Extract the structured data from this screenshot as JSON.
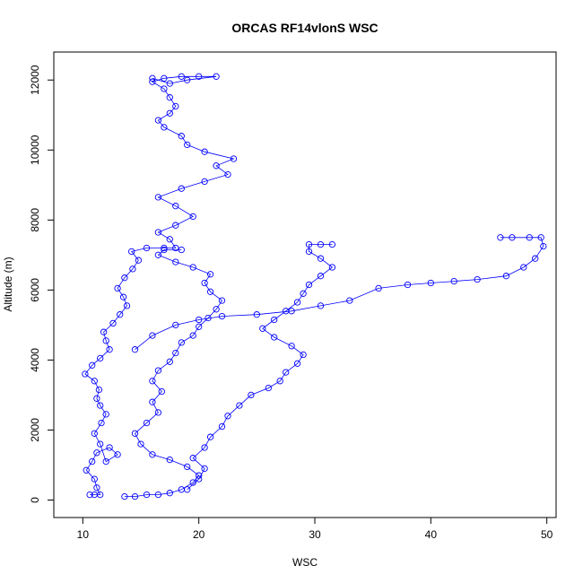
{
  "chart_data": {
    "type": "scatter",
    "title": "ORCAS RF14vlonS WSC",
    "xlabel": "WSC",
    "ylabel": "Altitude (m)",
    "xlim": [
      7.5,
      50.8
    ],
    "ylim": [
      -500,
      12800
    ],
    "xticks": [
      10,
      20,
      30,
      40,
      50
    ],
    "yticks": [
      0,
      2000,
      4000,
      6000,
      8000,
      10000,
      12000
    ],
    "grid": false,
    "legend": "none",
    "marker": "open-circle",
    "connected": true,
    "color": "#0000ff",
    "series": [
      {
        "points": [
          [
            10.6,
            150
          ],
          [
            11.0,
            150
          ],
          [
            11.5,
            150
          ],
          [
            11.2,
            350
          ],
          [
            11.0,
            600
          ],
          [
            10.3,
            850
          ],
          [
            10.8,
            1100
          ],
          [
            11.2,
            1350
          ],
          [
            12.3,
            1500
          ],
          [
            13.0,
            1300
          ],
          [
            12.0,
            1100
          ],
          [
            11.5,
            1600
          ],
          [
            11.0,
            1900
          ],
          [
            11.6,
            2200
          ],
          [
            12.0,
            2450
          ],
          [
            11.5,
            2700
          ],
          [
            11.2,
            2900
          ],
          [
            11.4,
            3150
          ],
          [
            11.0,
            3400
          ],
          [
            10.2,
            3600
          ],
          [
            10.8,
            3850
          ],
          [
            11.5,
            4050
          ],
          [
            12.3,
            4300
          ],
          [
            12.0,
            4550
          ],
          [
            11.8,
            4800
          ],
          [
            12.6,
            5050
          ],
          [
            13.2,
            5300
          ],
          [
            13.8,
            5550
          ],
          [
            13.5,
            5800
          ],
          [
            13.0,
            6050
          ],
          [
            13.6,
            6350
          ],
          [
            14.3,
            6600
          ],
          [
            14.8,
            6850
          ],
          [
            14.2,
            7100
          ],
          [
            15.5,
            7200
          ],
          [
            17.0,
            7200
          ],
          [
            18.0,
            7200
          ],
          [
            17.5,
            7450
          ],
          [
            16.5,
            7650
          ],
          [
            18.0,
            7850
          ],
          [
            19.5,
            8100
          ],
          [
            18.0,
            8400
          ],
          [
            16.5,
            8650
          ],
          [
            18.5,
            8900
          ],
          [
            20.5,
            9100
          ],
          [
            22.5,
            9300
          ],
          [
            21.5,
            9550
          ],
          [
            23.0,
            9750
          ],
          [
            20.5,
            9950
          ],
          [
            19.0,
            10150
          ],
          [
            18.5,
            10400
          ],
          [
            17.0,
            10650
          ],
          [
            16.5,
            10850
          ],
          [
            17.5,
            11050
          ],
          [
            18.0,
            11250
          ],
          [
            17.5,
            11500
          ],
          [
            17.0,
            11750
          ],
          [
            16.0,
            11950
          ],
          [
            17.0,
            12050
          ],
          [
            18.5,
            12100
          ],
          [
            20.0,
            12100
          ],
          [
            21.5,
            12100
          ],
          [
            19.0,
            12000
          ],
          [
            17.5,
            11900
          ],
          [
            16.0,
            12050
          ]
        ]
      },
      {
        "points": [
          [
            13.6,
            100
          ],
          [
            14.5,
            100
          ],
          [
            15.5,
            150
          ],
          [
            16.5,
            150
          ],
          [
            17.5,
            200
          ],
          [
            18.5,
            300
          ],
          [
            19.5,
            500
          ],
          [
            20.0,
            700
          ],
          [
            19.0,
            950
          ],
          [
            17.5,
            1150
          ],
          [
            16.0,
            1300
          ],
          [
            15.0,
            1600
          ],
          [
            14.5,
            1900
          ],
          [
            15.5,
            2200
          ],
          [
            16.5,
            2500
          ],
          [
            16.0,
            2800
          ],
          [
            16.8,
            3100
          ],
          [
            16.0,
            3400
          ],
          [
            16.5,
            3700
          ],
          [
            17.5,
            3950
          ],
          [
            18.0,
            4200
          ],
          [
            18.5,
            4500
          ],
          [
            19.5,
            4700
          ],
          [
            20.0,
            4950
          ],
          [
            20.8,
            5200
          ],
          [
            21.5,
            5450
          ],
          [
            22.0,
            5700
          ],
          [
            21.0,
            5950
          ],
          [
            20.5,
            6200
          ],
          [
            21.0,
            6450
          ],
          [
            19.5,
            6650
          ],
          [
            18.0,
            6800
          ],
          [
            16.5,
            7000
          ],
          [
            17.0,
            7150
          ],
          [
            18.5,
            7150
          ]
        ]
      },
      {
        "points": [
          [
            19.0,
            300
          ],
          [
            20.0,
            600
          ],
          [
            20.5,
            900
          ],
          [
            19.5,
            1200
          ],
          [
            20.5,
            1500
          ],
          [
            21.0,
            1800
          ],
          [
            22.0,
            2100
          ],
          [
            22.5,
            2400
          ],
          [
            23.5,
            2700
          ],
          [
            24.5,
            3000
          ],
          [
            26.0,
            3200
          ],
          [
            27.0,
            3400
          ],
          [
            27.5,
            3650
          ],
          [
            28.5,
            3900
          ],
          [
            29.0,
            4150
          ],
          [
            28.0,
            4400
          ],
          [
            26.5,
            4650
          ],
          [
            25.5,
            4900
          ],
          [
            26.5,
            5150
          ],
          [
            27.5,
            5400
          ],
          [
            28.5,
            5650
          ],
          [
            29.0,
            5900
          ],
          [
            29.5,
            6150
          ],
          [
            30.5,
            6400
          ],
          [
            31.5,
            6650
          ],
          [
            30.5,
            6900
          ],
          [
            29.5,
            7100
          ],
          [
            29.5,
            7300
          ],
          [
            30.5,
            7300
          ],
          [
            31.5,
            7300
          ]
        ]
      },
      {
        "points": [
          [
            14.5,
            4300
          ],
          [
            16.0,
            4700
          ],
          [
            18.0,
            5000
          ],
          [
            20.0,
            5150
          ],
          [
            22.0,
            5250
          ],
          [
            25.0,
            5300
          ],
          [
            28.0,
            5400
          ],
          [
            30.5,
            5550
          ],
          [
            33.0,
            5700
          ],
          [
            35.5,
            6050
          ],
          [
            38.0,
            6150
          ],
          [
            40.0,
            6200
          ],
          [
            42.0,
            6250
          ],
          [
            44.0,
            6300
          ],
          [
            46.5,
            6400
          ],
          [
            48.0,
            6650
          ],
          [
            49.0,
            6900
          ],
          [
            49.7,
            7250
          ],
          [
            49.5,
            7500
          ],
          [
            48.5,
            7500
          ],
          [
            47.0,
            7500
          ],
          [
            46.0,
            7500
          ]
        ]
      }
    ]
  }
}
